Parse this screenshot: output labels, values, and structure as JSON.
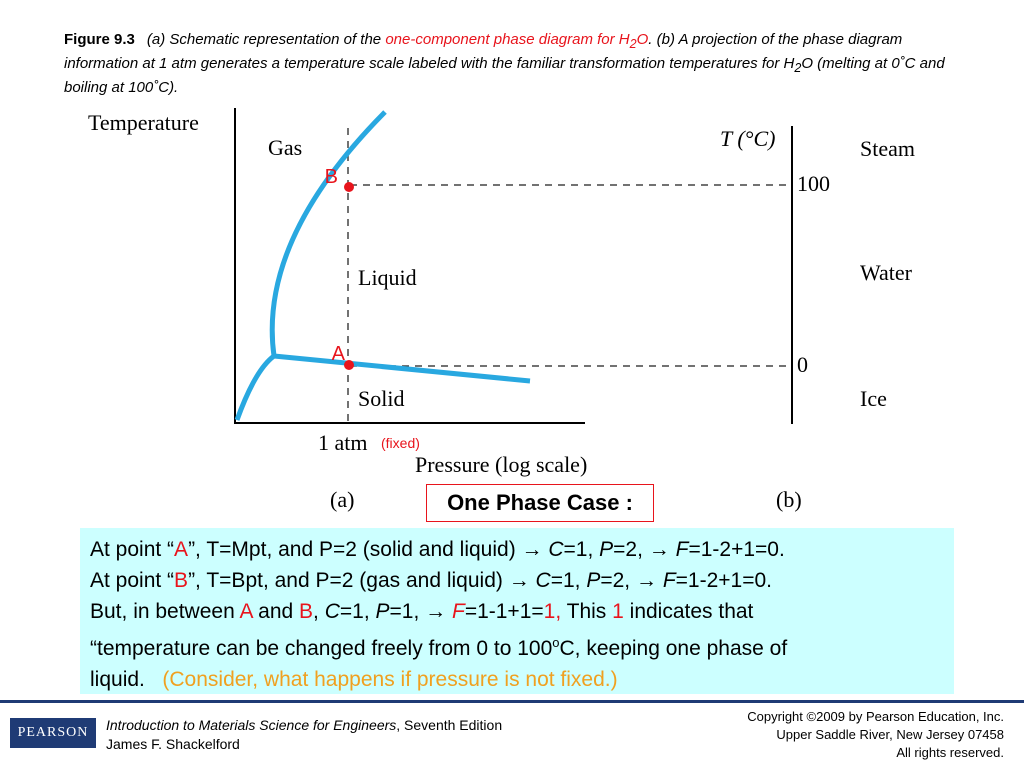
{
  "caption": {
    "figure_label": "Figure 9.3",
    "part_a_prefix": "(a) Schematic representation of the ",
    "highlight": "one-component phase diagram for H",
    "highlight_sub": "2",
    "highlight_end": "O",
    "rest_line": ". (b) A projection of the phase diagram information at 1 atm generates a temperature scale labeled with the familiar transformation temperatures for H",
    "rest_sub": "2",
    "rest_end": "O (melting at 0˚C and boiling at 100˚C)."
  },
  "diagram_a": {
    "y_axis_label": "Temperature",
    "x_axis_label": "Pressure (log scale)",
    "pressure_tick": "1 atm",
    "fixed_note": "(fixed)",
    "regions": [
      "Gas",
      "Liquid",
      "Solid"
    ],
    "point_a": "A",
    "point_b": "B",
    "panel_label": "(a)",
    "colors": {
      "curve": "#29a8e0",
      "point": "#e8141c",
      "dashed": "#444444"
    }
  },
  "diagram_b": {
    "axis_label": "T (°C)",
    "ticks": [
      "100",
      "0"
    ],
    "phases": [
      "Steam",
      "Water",
      "Ice"
    ],
    "panel_label": "(b)"
  },
  "one_phase_label": "One Phase Case :",
  "explanation": {
    "l1_a": "At point “",
    "l1_pt": "A",
    "l1_b": "”, T=Mpt, and P=2 (solid and liquid) → ",
    "l1_c": "C",
    "l1_d": "=1, ",
    "l1_p": "P",
    "l1_e": "=2, → ",
    "l1_f": "F",
    "l1_g": "=1-2+1=0.",
    "l2_a": "At point “",
    "l2_pt": "B",
    "l2_b": "”, T=Bpt, and P=2 (gas and liquid) → ",
    "l2_c": "C",
    "l2_d": "=1, ",
    "l2_p": "P",
    "l2_e": "=2, → ",
    "l2_f": "F",
    "l2_g": "=1-2+1=0.",
    "l3_a": "But, in between ",
    "l3_A": "A",
    "l3_and": " and ",
    "l3_B": "B",
    "l3_comma": ", ",
    "l3_c": "C",
    "l3_d": "=1, ",
    "l3_p": "P",
    "l3_e": "=1, → ",
    "l3_f": "F",
    "l3_g": "=1-1+1=",
    "l3_one": "1,",
    "l3_this": " This ",
    "l3_one2": "1",
    "l3_ind": " indicates that",
    "l4_a": "“temperature can be changed freely from 0 to 100",
    "l4_sup": "o",
    "l4_b": "C, keeping one phase of",
    "l5_a": "liquid.",
    "l5_note": "(Consider, what happens if pressure is not fixed.)"
  },
  "footer": {
    "logo": "PEARSON",
    "book_title": "Introduction to Materials Science for Engineers",
    "edition": ", Seventh Edition",
    "author": "James F. Shackelford",
    "copyright_1": "Copyright ©2009 by Pearson Education, Inc.",
    "copyright_2": "Upper Saddle River, New Jersey 07458",
    "copyright_3": "All rights reserved."
  }
}
